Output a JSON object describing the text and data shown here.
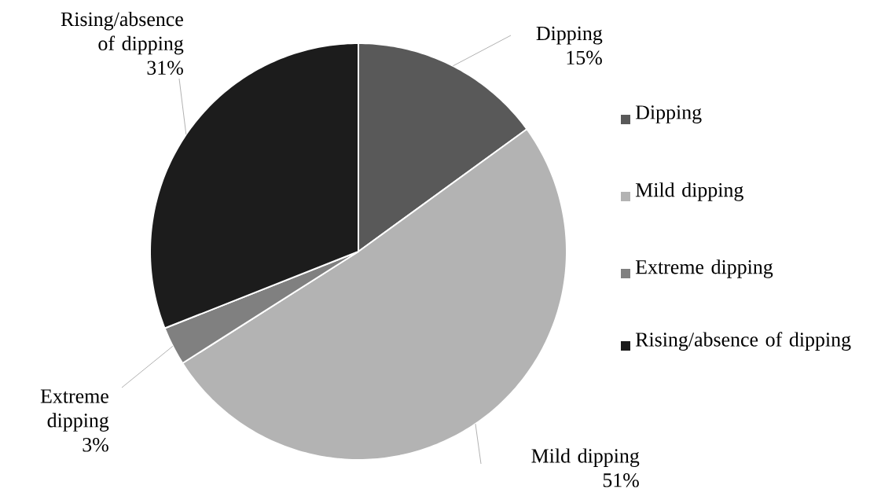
{
  "chart_data": {
    "type": "pie",
    "categories": [
      "Dipping",
      "Mild dipping",
      "Extreme dipping",
      "Rising/absence of dipping"
    ],
    "values": [
      15,
      51,
      3,
      31
    ],
    "value_labels": [
      "15%",
      "51%",
      "3%",
      "31%"
    ],
    "colors": [
      "#595959",
      "#b3b3b3",
      "#808080",
      "#1c1c1c"
    ],
    "legend": "right"
  }
}
